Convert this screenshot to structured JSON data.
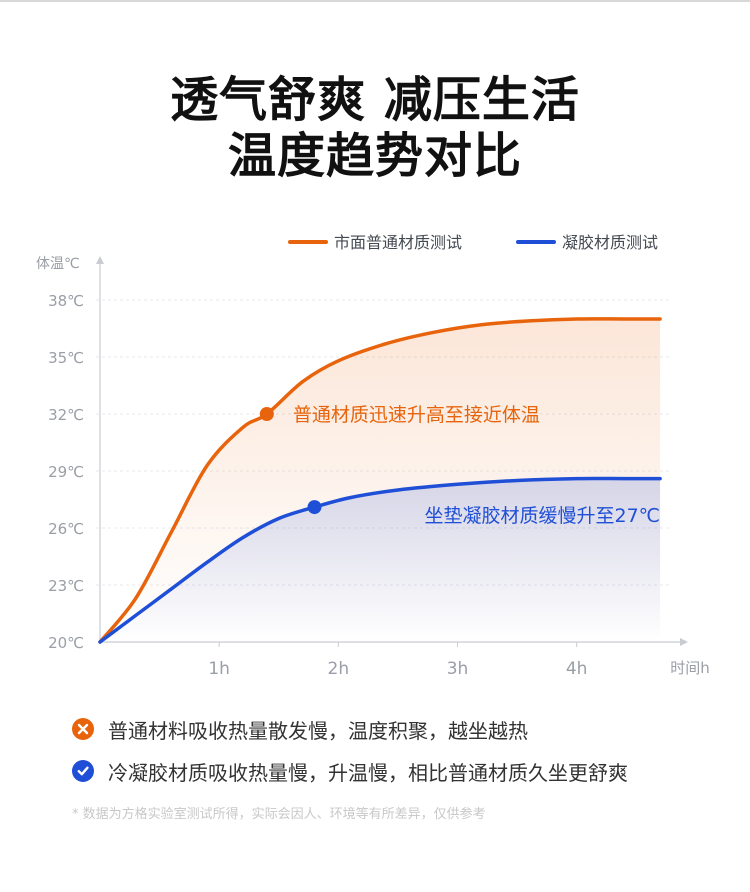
{
  "title": {
    "line1": "透气舒爽 减压生活",
    "line2": "温度趋势对比"
  },
  "colors": {
    "orange": "#e8640c",
    "blue": "#1f4fd6",
    "axis": "#c9ccd2",
    "tick_text": "#9a9ea6"
  },
  "chart_data": {
    "type": "line",
    "ylabel": "体温℃",
    "xlabel": "时间h",
    "y_ticks": [
      "38℃",
      "35℃",
      "32℃",
      "29℃",
      "26℃",
      "23℃",
      "20℃"
    ],
    "y_tick_values": [
      38,
      35,
      32,
      29,
      26,
      23,
      20
    ],
    "x_ticks": [
      "1h",
      "2h",
      "3h",
      "4h"
    ],
    "x_tick_values": [
      1,
      2,
      3,
      4
    ],
    "ylim": [
      20,
      38
    ],
    "xlim": [
      0,
      4.8
    ],
    "legend_position": "top-right",
    "series": [
      {
        "name": "市面普通材质测试",
        "color": "#e8640c",
        "x": [
          0,
          0.3,
          0.6,
          0.9,
          1.2,
          1.4,
          1.7,
          2.0,
          2.4,
          2.8,
          3.2,
          3.6,
          4.0,
          4.4,
          4.7
        ],
        "y": [
          20,
          22.3,
          25.8,
          29.3,
          31.3,
          32.0,
          33.7,
          34.8,
          35.7,
          36.3,
          36.7,
          36.9,
          37.0,
          37.0,
          37.0
        ],
        "marker": {
          "x": 1.4,
          "y": 32.0
        },
        "annotation": "普通材质迅速升高至接近体温"
      },
      {
        "name": "凝胶材质测试",
        "color": "#1f4fd6",
        "x": [
          0,
          0.3,
          0.6,
          0.9,
          1.2,
          1.5,
          1.8,
          2.1,
          2.5,
          3.0,
          3.5,
          4.0,
          4.4,
          4.7
        ],
        "y": [
          20,
          21.4,
          22.8,
          24.2,
          25.5,
          26.5,
          27.1,
          27.6,
          28.0,
          28.3,
          28.5,
          28.6,
          28.6,
          28.6
        ],
        "marker": {
          "x": 1.8,
          "y": 27.1
        },
        "annotation": "坐垫凝胶材质缓慢升至27℃"
      }
    ]
  },
  "notes": [
    {
      "icon": "cross-icon",
      "color": "#e8640c",
      "text": "普通材料吸收热量散发慢，温度积聚，越坐越热"
    },
    {
      "icon": "check-icon",
      "color": "#1f4fd6",
      "text": "冷凝胶材质吸收热量慢，升温慢，相比普通材质久坐更舒爽"
    }
  ],
  "footnote": "* 数据为方格实验室测试所得，实际会因人、环境等有所差异，仅供参考"
}
